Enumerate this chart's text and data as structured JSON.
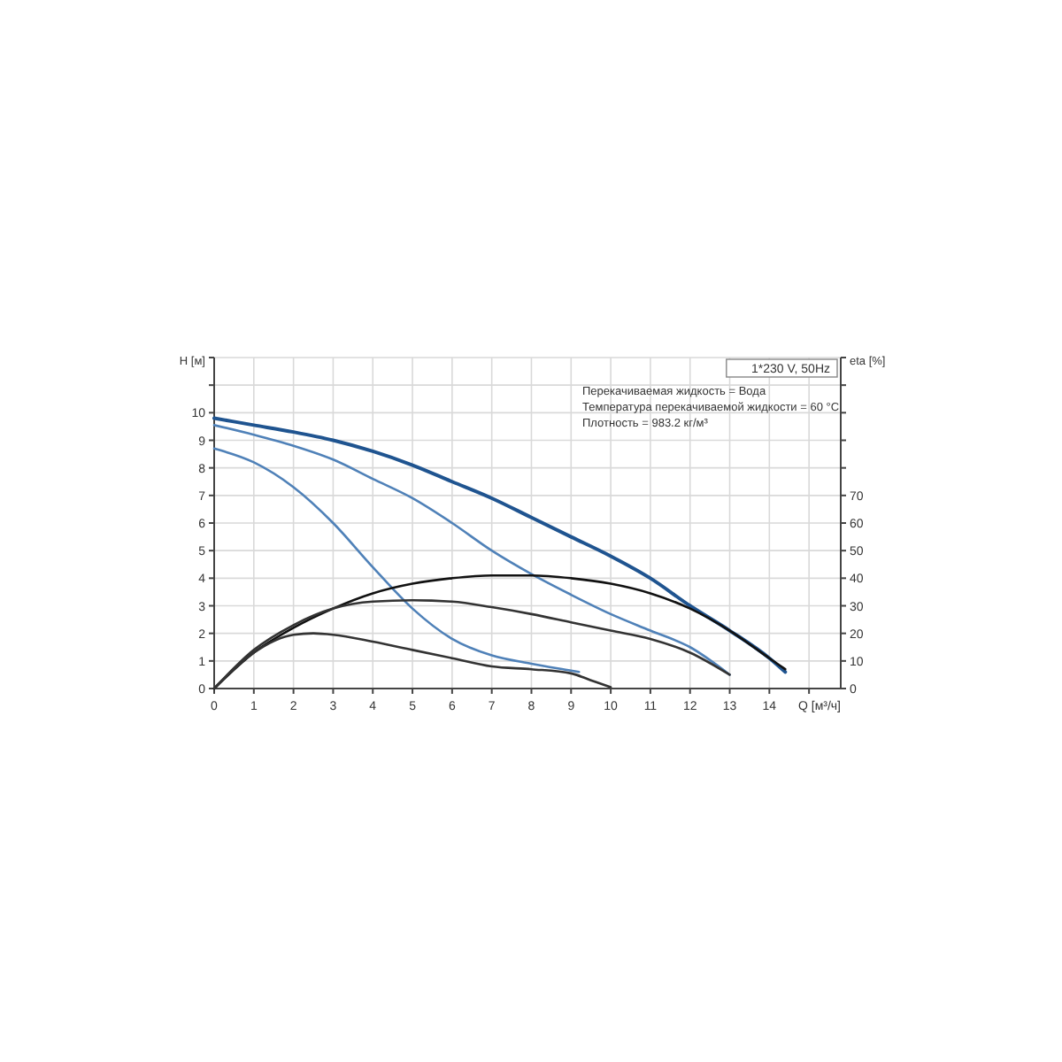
{
  "chart_data": {
    "type": "line",
    "xlabel": "Q [м³/ч]",
    "ylabel": "H [м]",
    "y2label": "eta [%]",
    "xlim": [
      0,
      15.8
    ],
    "ylim": [
      0,
      12
    ],
    "y2lim": [
      0,
      120
    ],
    "xticks": [
      0,
      1,
      2,
      3,
      4,
      5,
      6,
      7,
      8,
      9,
      10,
      11,
      12,
      13,
      14,
      {
        "value": 15,
        "label": null
      }
    ],
    "yticks": [
      0,
      1,
      2,
      3,
      4,
      5,
      6,
      7,
      8,
      9,
      10,
      {
        "value": 11,
        "label": null
      },
      {
        "value": 12,
        "label": null
      }
    ],
    "y2ticks": [
      0,
      10,
      20,
      30,
      40,
      50,
      60,
      70,
      {
        "value": 80,
        "label": null
      },
      {
        "value": 90,
        "label": null
      },
      {
        "value": 100,
        "label": null
      },
      {
        "value": 110,
        "label": null
      },
      {
        "value": 120,
        "label": null
      }
    ],
    "grid": true,
    "marker": "none",
    "line_style": "solid",
    "annotations": [
      "1*230 V, 50Hz",
      "Перекачиваемая жидкость = Вода",
      "Температура перекачиваемой жидкости = 60 °C",
      "Плотность = 983.2 кг/м³"
    ],
    "series": [
      {
        "color": "#1f5490",
        "x": [
          0,
          1,
          2,
          3,
          4,
          5,
          6,
          7,
          8,
          9,
          10,
          11,
          12,
          13,
          14,
          14.4
        ],
        "values": [
          9.8,
          9.55,
          9.3,
          9.0,
          8.6,
          8.1,
          7.5,
          6.9,
          6.2,
          5.5,
          4.8,
          4.0,
          3.0,
          2.1,
          1.1,
          0.6
        ]
      },
      {
        "color": "#4f81b8",
        "x": [
          0,
          1,
          2,
          3,
          4,
          5,
          6,
          7,
          8,
          9,
          10,
          11,
          12,
          13
        ],
        "values": [
          9.55,
          9.2,
          8.8,
          8.3,
          7.6,
          6.9,
          6.0,
          5.0,
          4.15,
          3.4,
          2.7,
          2.1,
          1.5,
          0.5
        ]
      },
      {
        "color": "#4f81b8",
        "x": [
          0,
          1,
          2,
          3,
          4,
          5,
          6,
          7,
          8,
          9,
          9.2
        ],
        "values": [
          8.7,
          8.2,
          7.3,
          6.0,
          4.4,
          2.9,
          1.8,
          1.2,
          0.9,
          0.65,
          0.6
        ]
      },
      {
        "color": "#111111",
        "axis": "y2",
        "x": [
          0,
          1,
          2,
          3,
          4,
          5,
          6,
          7,
          8,
          9,
          10,
          11,
          12,
          13,
          14,
          14.4
        ],
        "values": [
          0,
          13,
          22,
          29,
          34.5,
          38,
          40,
          41,
          41,
          40,
          38,
          34.5,
          29,
          21,
          11,
          7
        ]
      },
      {
        "color": "#333333",
        "axis": "y2",
        "x": [
          0,
          1,
          2,
          3,
          4,
          5,
          6,
          7,
          8,
          9,
          10,
          11,
          12,
          13
        ],
        "values": [
          0,
          14,
          23,
          29,
          31.5,
          32,
          31.5,
          29.5,
          27,
          24,
          21,
          18,
          13,
          5
        ]
      },
      {
        "color": "#333333",
        "axis": "y2",
        "x": [
          0,
          1,
          2,
          2.5,
          3,
          4,
          5,
          6,
          7,
          8,
          9,
          9.5,
          10
        ],
        "values": [
          0,
          13,
          19.5,
          20,
          19.5,
          17,
          14,
          11,
          8,
          7,
          5.5,
          3,
          0.5
        ]
      }
    ]
  }
}
